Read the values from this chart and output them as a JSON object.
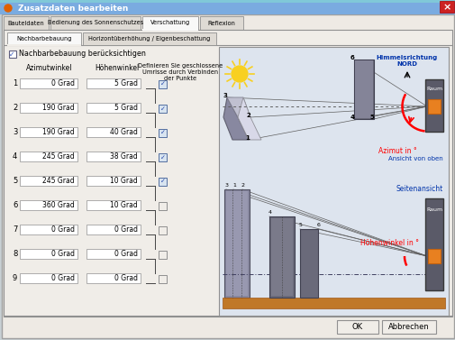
{
  "title": "Zusatzdaten bearbeiten",
  "tabs_main": [
    "Bauteldaten",
    "Bedienung des Sonnenschutzes",
    "Verschattung",
    "Reflexion"
  ],
  "tabs_sub": [
    "Nachbarbebauung",
    "Horizontüberhöhung / Eigenbeschattung"
  ],
  "active_tab_main": "Verschattung",
  "checkbox_label": "Nachbarbebauung berücksichtigen",
  "col_headers": [
    "Azimutwinkel",
    "Höhenwinkel"
  ],
  "col3_header": "Definieren Sie geschlossene\nUmrisse durch Verbinden\nder Punkte",
  "rows": [
    {
      "num": 1,
      "az": "0 Grad",
      "ho": "5 Grad"
    },
    {
      "num": 2,
      "az": "190 Grad",
      "ho": "5 Grad"
    },
    {
      "num": 3,
      "az": "190 Grad",
      "ho": "40 Grad"
    },
    {
      "num": 4,
      "az": "245 Grad",
      "ho": "38 Grad"
    },
    {
      "num": 5,
      "az": "245 Grad",
      "ho": "10 Grad"
    },
    {
      "num": 6,
      "az": "360 Grad",
      "ho": "10 Grad"
    },
    {
      "num": 7,
      "az": "0 Grad",
      "ho": "0 Grad"
    },
    {
      "num": 8,
      "az": "0 Grad",
      "ho": "0 Grad"
    },
    {
      "num": 9,
      "az": "0 Grad",
      "ho": "0 Grad"
    }
  ],
  "checked_rows": [
    1,
    2,
    3,
    4,
    5
  ],
  "bg_color": "#c8d0d4",
  "dialog_bg": "#f0ede8",
  "titlebar_bg": "#6090b8",
  "close_btn_color": "#cc2020",
  "nord_label": "Himmelsrichtung\nNORD",
  "raum_label": "Raum",
  "azimut_label": "Azimut in °",
  "ansicht_label": "Ansicht von oben",
  "seitenansicht_label": "Seitenansicht",
  "hoehenwinkel_label": "Höhenwinkel in °",
  "ok_label": "OK",
  "abbrechen_label": "Abbrechen"
}
